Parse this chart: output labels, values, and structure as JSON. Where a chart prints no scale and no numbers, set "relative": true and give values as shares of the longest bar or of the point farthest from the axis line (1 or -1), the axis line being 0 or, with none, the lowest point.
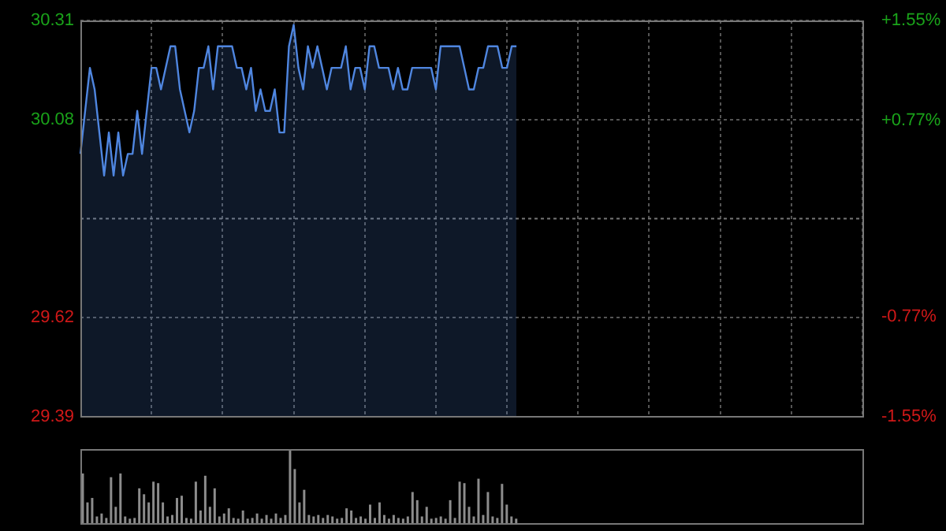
{
  "chart_data": [
    {
      "type": "area",
      "categories": [
        null,
        null,
        null,
        null,
        null,
        null,
        null,
        null,
        null,
        null,
        null,
        null,
        null,
        null,
        null,
        null,
        null,
        null,
        null,
        null,
        null,
        null,
        null,
        null,
        null,
        null,
        null,
        null,
        null,
        null,
        null,
        null,
        null,
        null,
        null,
        null,
        null,
        null,
        null,
        null,
        null,
        null,
        null,
        null,
        null,
        null,
        null,
        null,
        null,
        null,
        null,
        null,
        null,
        null,
        null,
        null,
        null,
        null,
        null,
        null,
        null,
        null,
        null,
        null,
        null,
        null,
        null,
        null,
        null,
        null,
        null,
        null,
        null,
        null,
        null,
        null,
        null,
        null,
        null,
        null,
        null,
        null,
        null,
        null,
        null,
        null,
        null,
        null,
        null,
        null,
        null,
        null,
        null,
        null,
        null,
        null,
        null,
        null,
        null,
        null,
        null,
        null,
        null,
        null,
        null,
        null,
        null,
        null,
        null,
        null,
        null,
        null,
        null,
        null,
        null,
        null,
        null,
        null,
        null,
        null,
        null,
        null,
        null,
        null,
        null,
        null,
        null,
        null,
        null,
        null,
        null,
        null,
        null,
        null,
        null,
        null,
        null,
        null,
        null,
        null,
        null,
        null,
        null,
        null,
        null,
        null,
        null,
        null,
        null,
        null,
        null,
        null,
        null,
        null,
        null,
        null,
        null,
        null,
        null,
        null,
        null,
        null,
        null,
        null,
        null,
        null
      ],
      "series": [
        {
          "color": "#4f86e0",
          "values": [
            30.0,
            30.1,
            30.2,
            30.15,
            30.05,
            29.95,
            30.05,
            29.95,
            30.05,
            29.95,
            30.0,
            30.0,
            30.1,
            30.0,
            30.1,
            30.2,
            30.2,
            30.15,
            30.2,
            30.25,
            30.25,
            30.15,
            30.1,
            30.05,
            30.1,
            30.2,
            30.2,
            30.25,
            30.15,
            30.25,
            30.25,
            30.25,
            30.25,
            30.2,
            30.2,
            30.15,
            30.2,
            30.1,
            30.15,
            30.1,
            30.1,
            30.15,
            30.05,
            30.05,
            30.25,
            30.3,
            30.2,
            30.15,
            30.25,
            30.2,
            30.25,
            30.2,
            30.15,
            30.2,
            30.2,
            30.2,
            30.25,
            30.15,
            30.2,
            30.2,
            30.15,
            30.25,
            30.25,
            30.2,
            30.2,
            30.2,
            30.15,
            30.2,
            30.15,
            30.15,
            30.2,
            30.2,
            30.2,
            30.2,
            30.2,
            30.15,
            30.25,
            30.25,
            30.25,
            30.25,
            30.25,
            30.2,
            30.15,
            30.15,
            30.2,
            30.2,
            30.25,
            30.25,
            30.25,
            30.2,
            30.2,
            30.25,
            30.25,
            null,
            null,
            null,
            null,
            null,
            null,
            null,
            null,
            null,
            null,
            null,
            null,
            null,
            null,
            null,
            null,
            null,
            null,
            null,
            null,
            null,
            null,
            null,
            null,
            null,
            null,
            null,
            null,
            null,
            null,
            null,
            null,
            null,
            null,
            null,
            null,
            null,
            null,
            null,
            null,
            null,
            null,
            null,
            null,
            null,
            null,
            null,
            null,
            null,
            null,
            null,
            null,
            null,
            null,
            null,
            null,
            null,
            null,
            null,
            null,
            null,
            null,
            null,
            null,
            null,
            null,
            null,
            null,
            null,
            null,
            null,
            null,
            null
          ]
        }
      ],
      "ylim": [
        29.39,
        30.31
      ],
      "yticks": [
        29.39,
        29.62,
        30.08,
        30.31
      ],
      "y2lim": [
        -1.55,
        1.55
      ],
      "y2ticks": [
        {
          "value": -1.55,
          "label": "-1.55%"
        },
        {
          "value": -0.77,
          "label": "-0.77%"
        },
        {
          "value": 0.77,
          "label": "+0.77%"
        },
        {
          "value": 1.55,
          "label": "+1.55%"
        }
      ],
      "grid": true,
      "marker": "none",
      "legend": false,
      "ref_lines": [
        {
          "axis": "y",
          "value": 29.85
        }
      ]
    },
    {
      "type": "bar",
      "relative": true,
      "color": "#8c8c8c",
      "legend": false,
      "categories": [
        null,
        null,
        null,
        null,
        null,
        null,
        null,
        null,
        null,
        null,
        null,
        null,
        null,
        null,
        null,
        null,
        null,
        null,
        null,
        null,
        null,
        null,
        null,
        null,
        null,
        null,
        null,
        null,
        null,
        null,
        null,
        null,
        null,
        null,
        null,
        null,
        null,
        null,
        null,
        null,
        null,
        null,
        null,
        null,
        null,
        null,
        null,
        null,
        null,
        null,
        null,
        null,
        null,
        null,
        null,
        null,
        null,
        null,
        null,
        null,
        null,
        null,
        null,
        null,
        null,
        null,
        null,
        null,
        null,
        null,
        null,
        null,
        null,
        null,
        null,
        null,
        null,
        null,
        null,
        null,
        null,
        null,
        null,
        null,
        null,
        null,
        null,
        null,
        null,
        null,
        null,
        null,
        null,
        null,
        null,
        null,
        null,
        null,
        null,
        null,
        null,
        null,
        null,
        null,
        null,
        null,
        null,
        null,
        null,
        null,
        null,
        null,
        null,
        null,
        null,
        null,
        null,
        null,
        null,
        null,
        null,
        null,
        null,
        null,
        null,
        null,
        null,
        null,
        null,
        null,
        null,
        null,
        null,
        null,
        null,
        null,
        null,
        null,
        null,
        null,
        null,
        null,
        null,
        null,
        null,
        null,
        null,
        null,
        null,
        null,
        null,
        null,
        null,
        null,
        null,
        null,
        null,
        null,
        null,
        null,
        null,
        null,
        null,
        null,
        null,
        null
      ],
      "values": [
        0.67,
        0.28,
        0.34,
        0.09,
        0.13,
        0.07,
        0.62,
        0.22,
        0.67,
        0.09,
        0.06,
        0.07,
        0.47,
        0.39,
        0.28,
        0.56,
        0.54,
        0.28,
        0.09,
        0.11,
        0.34,
        0.37,
        0.07,
        0.06,
        0.56,
        0.17,
        0.64,
        0.22,
        0.47,
        0.09,
        0.13,
        0.2,
        0.07,
        0.06,
        0.17,
        0.06,
        0.07,
        0.13,
        0.06,
        0.11,
        0.06,
        0.13,
        0.07,
        0.11,
        1,
        0.73,
        0.28,
        0.45,
        0.11,
        0.09,
        0.11,
        0.07,
        0.11,
        0.09,
        0.06,
        0.07,
        0.2,
        0.17,
        0.07,
        0.09,
        0.06,
        0.25,
        0.07,
        0.28,
        0.11,
        0.06,
        0.11,
        0.07,
        0.06,
        0.09,
        0.42,
        0.31,
        0.09,
        0.22,
        0.06,
        0.07,
        0.09,
        0.06,
        0.31,
        0.07,
        0.56,
        0.54,
        0.22,
        0.09,
        0.6,
        0.11,
        0.42,
        0.09,
        0.07,
        0.53,
        0.25,
        0.09,
        0.06,
        null,
        null,
        null,
        null,
        null,
        null,
        null,
        null,
        null,
        null,
        null,
        null,
        null,
        null,
        null,
        null,
        null,
        null,
        null,
        null,
        null,
        null,
        null,
        null,
        null,
        null,
        null,
        null,
        null,
        null,
        null,
        null,
        null,
        null,
        null,
        null,
        null,
        null,
        null,
        null,
        null,
        null,
        null,
        null,
        null,
        null,
        null,
        null,
        null,
        null,
        null,
        null,
        null,
        null,
        null,
        null,
        null,
        null,
        null,
        null,
        null,
        null,
        null,
        null,
        null,
        null,
        null,
        null,
        null,
        null,
        null,
        null,
        null
      ]
    }
  ]
}
